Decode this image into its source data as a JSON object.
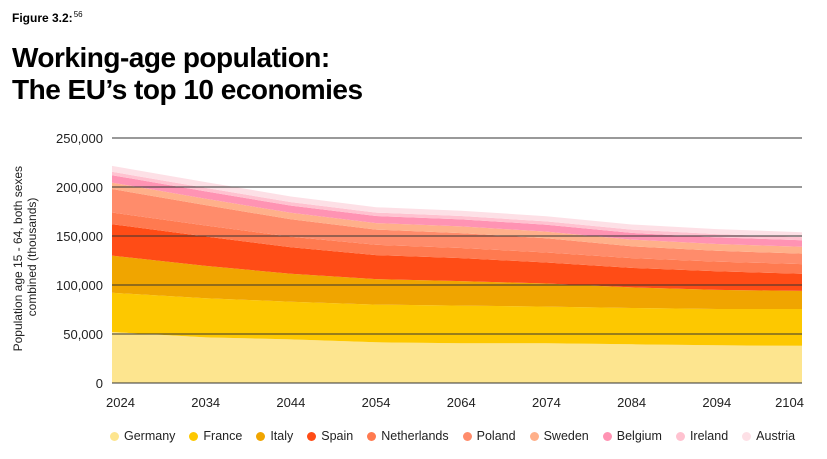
{
  "figure_label": "Figure 3.2:",
  "figure_note": "56",
  "title_line1": "Working-age population:",
  "title_line2": "The EU’s top 10 economies",
  "chart_data": {
    "type": "area",
    "stacked": true,
    "ylabel_line1": "Population age 15 - 64, both sexes",
    "ylabel_line2": "combined (thousands)",
    "ylim": [
      0,
      250000
    ],
    "yticks": [
      0,
      50000,
      100000,
      150000,
      200000,
      250000
    ],
    "ytick_labels": [
      "0",
      "50,000",
      "100,000",
      "150,000",
      "200,000",
      "250,000"
    ],
    "xlim": [
      2023,
      2104
    ],
    "xticks": [
      2024,
      2034,
      2044,
      2054,
      2064,
      2074,
      2084,
      2094,
      2104
    ],
    "xtick_labels": [
      "2024",
      "2034",
      "2044",
      "2054",
      "2064",
      "2074",
      "2084",
      "2094",
      "2104"
    ],
    "x": [
      2023,
      2034,
      2044,
      2054,
      2064,
      2074,
      2084,
      2094,
      2104
    ],
    "grid": "horizontal",
    "legend_position": "bottom",
    "series": [
      {
        "name": "Germany",
        "color": "#fde58f",
        "values": [
          52000,
          46500,
          44500,
          41500,
          40500,
          40500,
          39500,
          38500,
          38000
        ]
      },
      {
        "name": "France",
        "color": "#fdc800",
        "values": [
          40000,
          40000,
          38500,
          38500,
          38500,
          37500,
          37000,
          37000,
          37500
        ]
      },
      {
        "name": "Italy",
        "color": "#f0a500",
        "values": [
          38000,
          33000,
          28500,
          26000,
          25000,
          23500,
          21000,
          19500,
          18500
        ]
      },
      {
        "name": "Spain",
        "color": "#ff4c16",
        "values": [
          32000,
          30000,
          27000,
          24500,
          23500,
          21500,
          20000,
          19000,
          17500
        ]
      },
      {
        "name": "Netherlands",
        "color": "#ff7a50",
        "values": [
          12000,
          11200,
          10700,
          10500,
          10300,
          10200,
          10000,
          9900,
          9800
        ]
      },
      {
        "name": "Poland",
        "color": "#ff8c6b",
        "values": [
          24000,
          20800,
          17800,
          15500,
          15200,
          14500,
          12000,
          11000,
          10700
        ]
      },
      {
        "name": "Sweden",
        "color": "#ffb08a",
        "values": [
          6500,
          6600,
          6700,
          6700,
          6800,
          6800,
          6800,
          6900,
          7000
        ]
      },
      {
        "name": "Belgium",
        "color": "#ff93b3",
        "values": [
          7500,
          7400,
          7300,
          7200,
          7100,
          7000,
          6900,
          6800,
          6700
        ]
      },
      {
        "name": "Ireland",
        "color": "#ffc2d0",
        "values": [
          3500,
          3600,
          3600,
          3500,
          3500,
          3400,
          3300,
          3300,
          3200
        ]
      },
      {
        "name": "Austria",
        "color": "#fde0e6",
        "values": [
          6000,
          5900,
          5700,
          5500,
          5400,
          5300,
          5200,
          5100,
          5000
        ]
      }
    ]
  }
}
